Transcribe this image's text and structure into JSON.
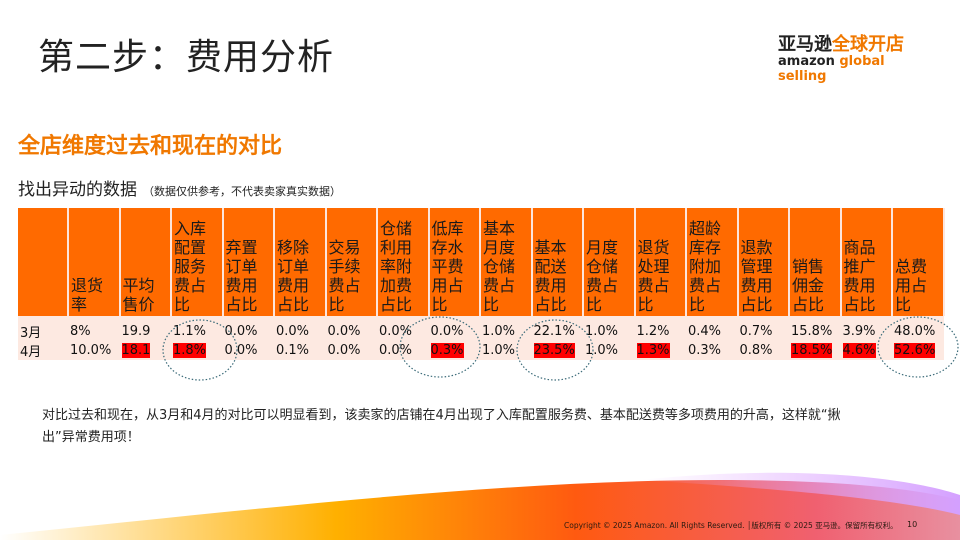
{
  "title": "第二步：费用分析",
  "logo": {
    "cn_black": "亚马逊",
    "cn_orange": "全球开店",
    "en_black": "amazon",
    "en_orange": " global selling"
  },
  "subtitle": "全店维度过去和现在的对比",
  "lead": {
    "text": "找出异动的数据",
    "note": "（数据仅供参考，不代表卖家真实数据）"
  },
  "table": {
    "headers": [
      "",
      "退货率",
      "平均售价",
      "入库配置服务费占比",
      "弃置订单费用占比",
      "移除订单费用占比",
      "交易手续费占比",
      "仓储利用率附加费占比",
      "低库存水平费用占比",
      "基本月度仓储费占比",
      "基本配送费用占比",
      "月度仓储费占比",
      "退货处理费占比",
      "超龄库存附加费占比",
      "退款管理费用占比",
      "销售佣金占比",
      "商品推广费用占比",
      "总费用占比"
    ],
    "rows": [
      {
        "label": "3月",
        "values": [
          "8%",
          "19.9",
          "1.1%",
          "0.0%",
          "0.0%",
          "0.0%",
          "0.0%",
          "0.0%",
          "1.0%",
          "22.1%",
          "1.0%",
          "1.2%",
          "0.4%",
          "0.7%",
          "15.8%",
          "3.9%",
          "48.0%"
        ],
        "highlight": []
      },
      {
        "label": "4月",
        "values": [
          "10.0%",
          "18.1",
          "1.8%",
          "0.0%",
          "0.1%",
          "0.0%",
          "0.0%",
          "0.3%",
          "1.0%",
          "23.5%",
          "1.0%",
          "1.3%",
          "0.3%",
          "0.8%",
          "18.5%",
          "4.6%",
          "52.6%"
        ],
        "highlight": [
          1,
          2,
          7,
          9,
          11,
          14,
          15,
          16
        ]
      }
    ],
    "colors": {
      "header": "#ff6a00",
      "row": "#fde9e1",
      "highlight": "#ff0000"
    }
  },
  "note": "对比过去和现在，从3月和4月的对比可以明显看到，该卖家的店铺在4月出现了入库配置服务费、基本配送费等多项费用的升高，这样就“揪出”异常费用项！",
  "footer": {
    "copyright": "Copyright © 2025 Amazon. All Rights Reserved. │版权所有 © 2025 亚马逊。保留所有权利。",
    "page": "10"
  }
}
